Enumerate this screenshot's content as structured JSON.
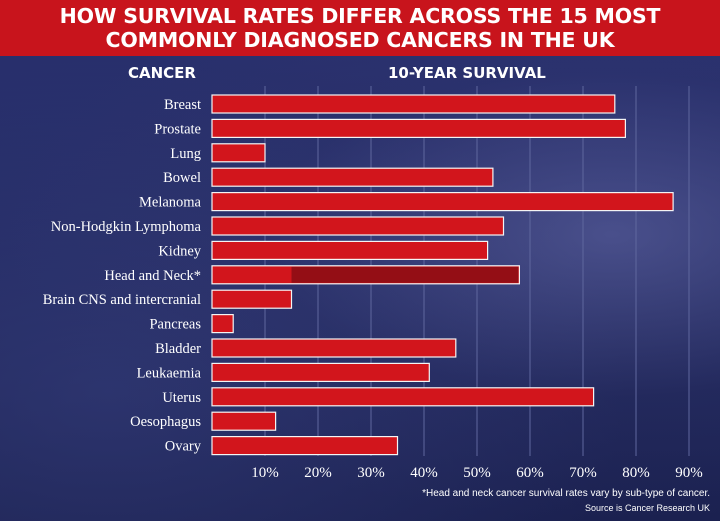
{
  "header": {
    "title_line1": "HOW SURVIVAL RATES DIFFER ACROSS THE 15 MOST",
    "title_line2": "COMMONLY DIAGNOSED CANCERS IN THE UK",
    "category_column": "CANCER",
    "value_column": "10-YEAR SURVIVAL"
  },
  "footnotes": {
    "note": "*Head and neck cancer survival rates vary by sub-type of cancer.",
    "source": "Source is Cancer Research UK"
  },
  "colors": {
    "title_bar": "#c8141c",
    "bar_fill": "#d2151c",
    "bar_stroke": "#f4f4f4",
    "head_neck_range": "#8a0d14",
    "grid": "#5f679e"
  },
  "chart_data": {
    "type": "bar",
    "orientation": "horizontal",
    "categories": [
      "Breast",
      "Prostate",
      "Lung",
      "Bowel",
      "Melanoma",
      "Non-Hodgkin Lymphoma",
      "Kidney",
      "Head and Neck*",
      "Brain CNS and intercranial",
      "Pancreas",
      "Bladder",
      "Leukaemia",
      "Uterus",
      "Oesophagus",
      "Ovary"
    ],
    "values": [
      76,
      78,
      10,
      53,
      87,
      55,
      52,
      58,
      15,
      4,
      46,
      41,
      72,
      12,
      35
    ],
    "xlim": [
      0,
      90
    ],
    "xticks": [
      10,
      20,
      30,
      40,
      50,
      60,
      70,
      80,
      90
    ],
    "xtick_labels": [
      "10%",
      "20%",
      "30%",
      "40%",
      "50%",
      "60%",
      "70%",
      "80%",
      "90%"
    ],
    "grid": true,
    "annotations": [
      {
        "category": "Head and Neck*",
        "type": "range_shading",
        "from": 15,
        "to": 58
      }
    ]
  }
}
